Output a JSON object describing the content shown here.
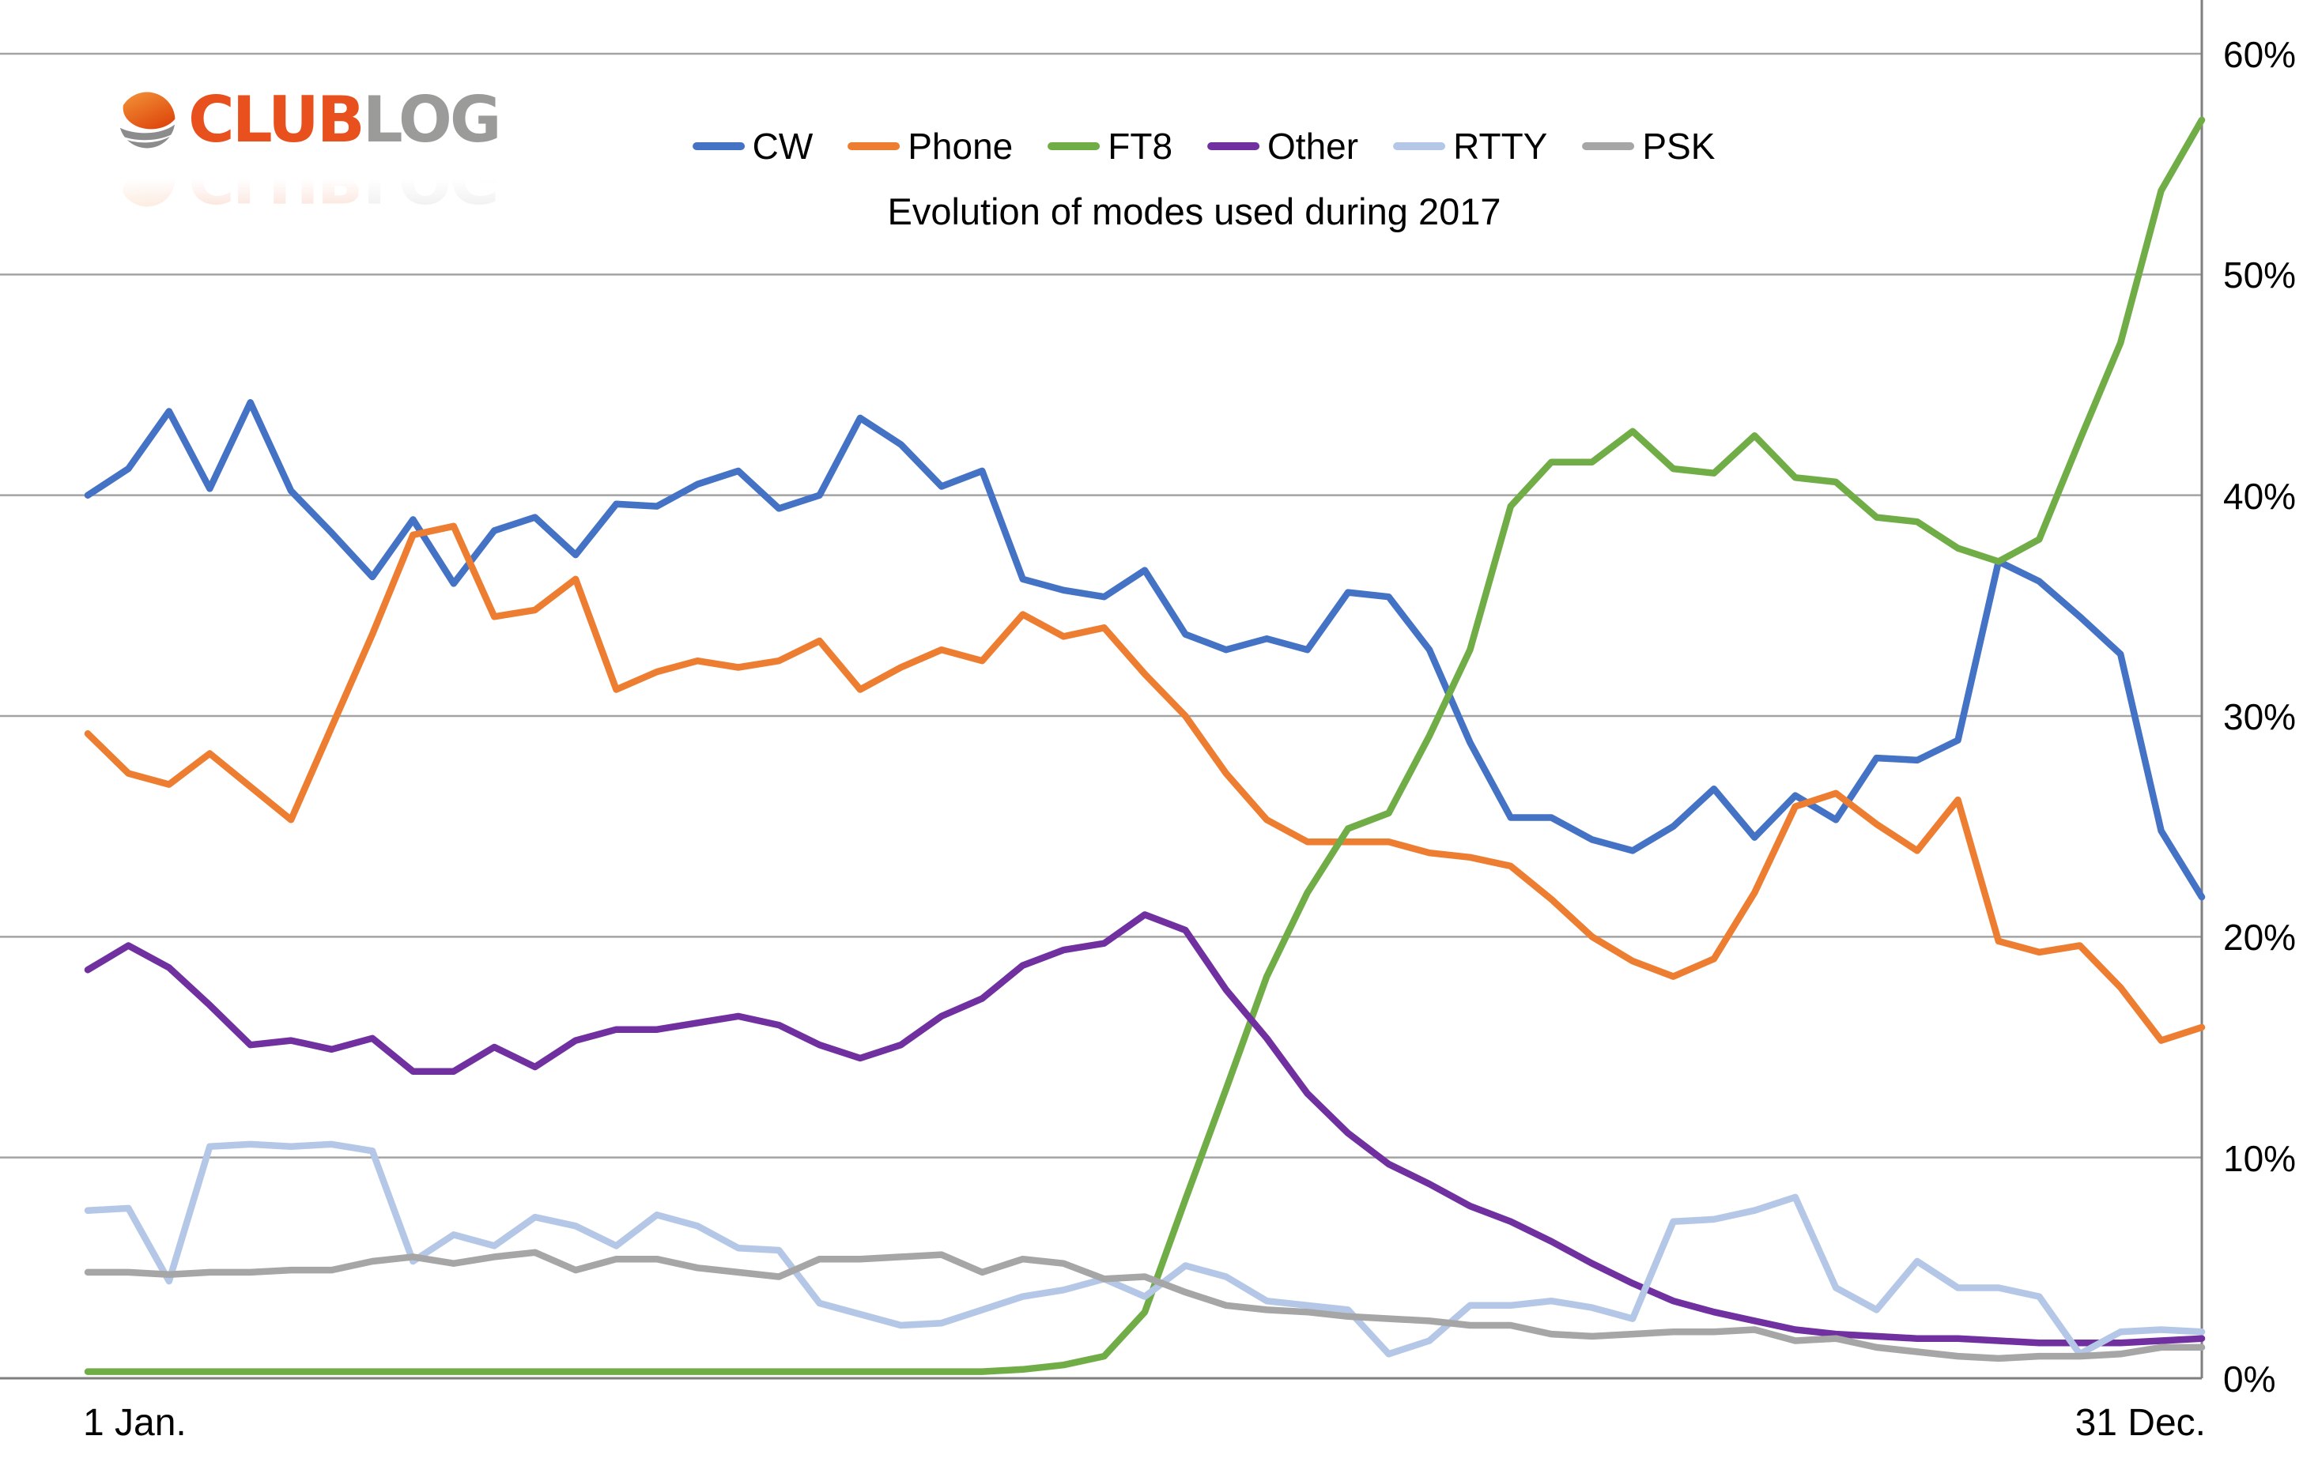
{
  "logo": {
    "club": "CLUB",
    "log": "LOG",
    "icon": "clublog-globe-icon",
    "club_color": "#e8511d",
    "log_color": "#9b9b9a"
  },
  "chart_data": {
    "type": "line",
    "title": "Evolution of modes used during 2017",
    "legend_position": "top-center",
    "y_axis": {
      "position": "right",
      "ylim": [
        0,
        60
      ],
      "grid": true,
      "ticks": [
        "60%",
        "50%",
        "40%",
        "30%",
        "20%",
        "10%",
        "0%"
      ]
    },
    "x_axis": {
      "start_label": "1 Jan.",
      "end_label": "31 Dec."
    },
    "x_days": [
      0,
      7,
      14,
      21,
      28,
      35,
      42,
      49,
      56,
      63,
      70,
      77,
      84,
      91,
      98,
      105,
      112,
      119,
      126,
      133,
      140,
      147,
      154,
      161,
      168,
      175,
      182,
      189,
      196,
      203,
      210,
      217,
      224,
      231,
      238,
      245,
      252,
      259,
      266,
      273,
      280,
      287,
      294,
      301,
      308,
      315,
      322,
      329,
      336,
      343,
      350,
      357,
      364
    ],
    "series": [
      {
        "name": "CW",
        "color": "#4472C4",
        "values": [
          40.0,
          41.2,
          43.8,
          40.3,
          44.2,
          40.2,
          38.3,
          36.3,
          38.9,
          36.0,
          38.4,
          39.0,
          37.3,
          39.6,
          39.5,
          40.5,
          41.1,
          39.4,
          40.0,
          43.5,
          42.3,
          40.4,
          41.1,
          36.2,
          35.7,
          35.4,
          36.6,
          33.7,
          33.0,
          33.5,
          33.0,
          35.6,
          35.4,
          33.0,
          28.8,
          25.4,
          25.4,
          24.4,
          23.9,
          25.0,
          26.7,
          24.5,
          26.4,
          25.3,
          28.1,
          28.0,
          28.9,
          37.0,
          36.1,
          34.5,
          32.8,
          24.8,
          21.8
        ]
      },
      {
        "name": "Phone",
        "color": "#ED7D31",
        "values": [
          29.2,
          27.4,
          26.9,
          28.3,
          26.8,
          25.3,
          29.5,
          33.7,
          38.2,
          38.6,
          34.5,
          34.8,
          36.2,
          31.2,
          32.0,
          32.5,
          32.2,
          32.5,
          33.4,
          31.2,
          32.2,
          33.0,
          32.5,
          34.6,
          33.6,
          34.0,
          31.9,
          30.0,
          27.4,
          25.3,
          24.3,
          24.3,
          24.3,
          23.8,
          23.6,
          23.2,
          21.7,
          20.0,
          18.9,
          18.2,
          19.0,
          22.0,
          25.9,
          26.5,
          25.1,
          23.9,
          26.2,
          19.8,
          19.3,
          19.6,
          17.7,
          15.3,
          15.9
        ]
      },
      {
        "name": "FT8",
        "color": "#70AD47",
        "values": [
          0.3,
          0.3,
          0.3,
          0.3,
          0.3,
          0.3,
          0.3,
          0.3,
          0.3,
          0.3,
          0.3,
          0.3,
          0.3,
          0.3,
          0.3,
          0.3,
          0.3,
          0.3,
          0.3,
          0.3,
          0.3,
          0.3,
          0.3,
          0.4,
          0.6,
          1.0,
          3.0,
          8.1,
          13.1,
          18.2,
          22.0,
          24.9,
          25.6,
          29.1,
          33.0,
          39.5,
          41.5,
          41.5,
          42.9,
          41.2,
          41.0,
          42.7,
          40.8,
          40.6,
          39.0,
          38.8,
          37.6,
          37.0,
          38.0,
          42.5,
          46.9,
          53.8,
          57.0
        ]
      },
      {
        "name": "Other",
        "color": "#7030A0",
        "values": [
          18.5,
          19.6,
          18.6,
          16.9,
          15.1,
          15.3,
          14.9,
          15.4,
          13.9,
          13.9,
          15.0,
          14.1,
          15.3,
          15.8,
          15.8,
          16.1,
          16.4,
          16.0,
          15.1,
          14.5,
          15.1,
          16.4,
          17.2,
          18.7,
          19.4,
          19.7,
          21.0,
          20.3,
          17.6,
          15.4,
          12.9,
          11.1,
          9.7,
          8.8,
          7.8,
          7.1,
          6.2,
          5.2,
          4.3,
          3.5,
          3.0,
          2.6,
          2.2,
          2.0,
          1.9,
          1.8,
          1.8,
          1.7,
          1.6,
          1.6,
          1.6,
          1.7,
          1.8
        ]
      },
      {
        "name": "RTTY",
        "color": "#B4C7E7",
        "values": [
          7.6,
          7.7,
          4.4,
          10.5,
          10.6,
          10.5,
          10.6,
          10.3,
          5.3,
          6.5,
          6.0,
          7.3,
          6.9,
          6.0,
          7.4,
          6.9,
          5.9,
          5.8,
          3.4,
          2.9,
          2.4,
          2.5,
          3.1,
          3.7,
          4.0,
          4.5,
          3.7,
          5.1,
          4.6,
          3.5,
          3.3,
          3.1,
          1.1,
          1.7,
          3.3,
          3.3,
          3.5,
          3.2,
          2.7,
          7.1,
          7.2,
          7.6,
          8.2,
          4.1,
          3.1,
          5.3,
          4.1,
          4.1,
          3.7,
          1.1,
          2.1,
          2.2,
          2.1
        ]
      },
      {
        "name": "PSK",
        "color": "#A6A6A6",
        "values": [
          4.8,
          4.8,
          4.7,
          4.8,
          4.8,
          4.9,
          4.9,
          5.3,
          5.5,
          5.2,
          5.5,
          5.7,
          4.9,
          5.4,
          5.4,
          5.0,
          4.8,
          4.6,
          5.4,
          5.4,
          5.5,
          5.6,
          4.8,
          5.4,
          5.2,
          4.5,
          4.6,
          3.9,
          3.3,
          3.1,
          3.0,
          2.8,
          2.7,
          2.6,
          2.4,
          2.4,
          2.0,
          1.9,
          2.0,
          2.1,
          2.1,
          2.2,
          1.7,
          1.8,
          1.4,
          1.2,
          1.0,
          0.9,
          1.0,
          1.0,
          1.1,
          1.4,
          1.4
        ]
      }
    ]
  }
}
